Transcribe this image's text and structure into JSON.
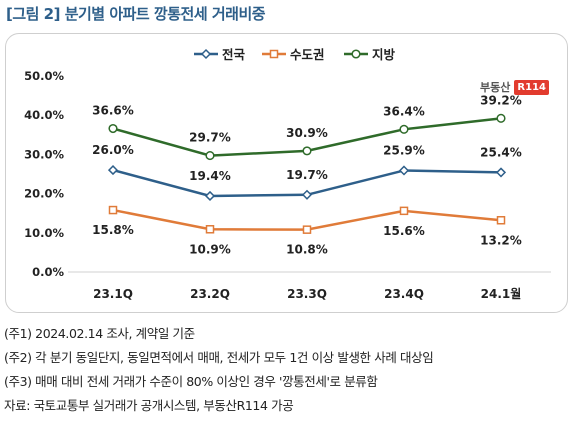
{
  "title": "[그림 2] 분기별 아파트 깡통전세 거래비중",
  "logo": {
    "text": "부동산",
    "badge": "R114"
  },
  "chart_data": {
    "type": "line",
    "categories": [
      "23.1Q",
      "23.2Q",
      "23.3Q",
      "23.4Q",
      "24.1월"
    ],
    "ylim": [
      0,
      50
    ],
    "yticks": [
      "0.0%",
      "10.0%",
      "20.0%",
      "30.0%",
      "40.0%",
      "50.0%"
    ],
    "legend_position": "top-center",
    "grid": false,
    "series": [
      {
        "name": "전국",
        "color": "#2e5f8a",
        "marker": "diamond",
        "values": [
          26.0,
          19.4,
          19.7,
          25.9,
          25.4
        ],
        "labels": [
          "26.0%",
          "19.4%",
          "19.7%",
          "25.9%",
          "25.4%"
        ]
      },
      {
        "name": "수도권",
        "color": "#e07b39",
        "marker": "square",
        "values": [
          15.8,
          10.9,
          10.8,
          15.6,
          13.2
        ],
        "labels": [
          "15.8%",
          "10.9%",
          "10.8%",
          "15.6%",
          "13.2%"
        ]
      },
      {
        "name": "지방",
        "color": "#2f6b2a",
        "marker": "circle",
        "values": [
          36.6,
          29.7,
          30.9,
          36.4,
          39.2
        ],
        "labels": [
          "36.6%",
          "29.7%",
          "30.9%",
          "36.4%",
          "39.2%"
        ]
      }
    ]
  },
  "notes": [
    "(주1) 2024.02.14 조사, 계약일 기준",
    "(주2) 각 분기 동일단지, 동일면적에서 매매, 전세가 모두 1건 이상 발생한 사례 대상임",
    "(주3) 매매 대비 전세 거래가 수준이 80% 이상인 경우 '깡통전세'로 분류함",
    "자료: 국토교통부 실거래가 공개시스템, 부동산R114 가공"
  ]
}
